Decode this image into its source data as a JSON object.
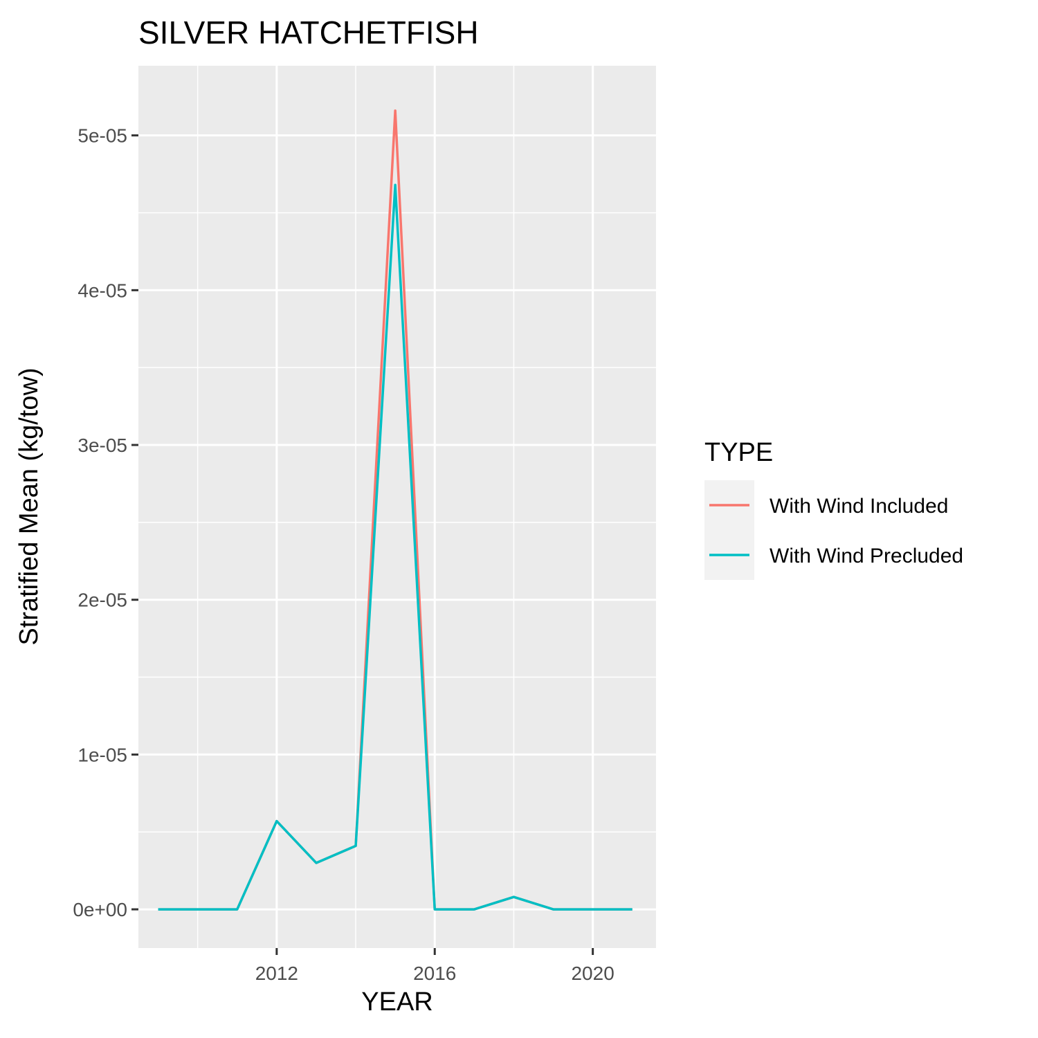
{
  "chart_data": {
    "type": "line",
    "title": "SILVER HATCHETFISH",
    "xlabel": "YEAR",
    "ylabel": "Stratified Mean (kg/tow)",
    "xlim": [
      2008.5,
      2021.6
    ],
    "ylim": [
      -2.5e-06,
      5.45e-05
    ],
    "x_ticks": [
      2012,
      2016,
      2020
    ],
    "x_tick_labels": [
      "2012",
      "2016",
      "2020"
    ],
    "x_minor_ticks": [
      2010,
      2014,
      2018
    ],
    "y_ticks": [
      0,
      1e-05,
      2e-05,
      3e-05,
      4e-05,
      5e-05
    ],
    "y_tick_labels": [
      "0e+00",
      "1e-05",
      "2e-05",
      "3e-05",
      "4e-05",
      "5e-05"
    ],
    "y_minor_ticks": [
      5e-06,
      1.5e-05,
      2.5e-05,
      3.5e-05,
      4.5e-05
    ],
    "grid": true,
    "legend": {
      "title": "TYPE",
      "position": "right"
    },
    "x": [
      2009,
      2010,
      2011,
      2012,
      2013,
      2014,
      2015,
      2016,
      2017,
      2018,
      2019,
      2020,
      2021
    ],
    "series": [
      {
        "name": "With Wind Included",
        "color": "#F8766D",
        "values": [
          0,
          0,
          0,
          5.7e-06,
          3e-06,
          4.1e-06,
          5.16e-05,
          0,
          0,
          8e-07,
          0,
          0,
          0
        ]
      },
      {
        "name": "With Wind Precluded",
        "color": "#00BFC4",
        "values": [
          0,
          0,
          0,
          5.7e-06,
          3e-06,
          4.1e-06,
          4.68e-05,
          0,
          0,
          8e-07,
          0,
          0,
          0
        ]
      }
    ]
  }
}
